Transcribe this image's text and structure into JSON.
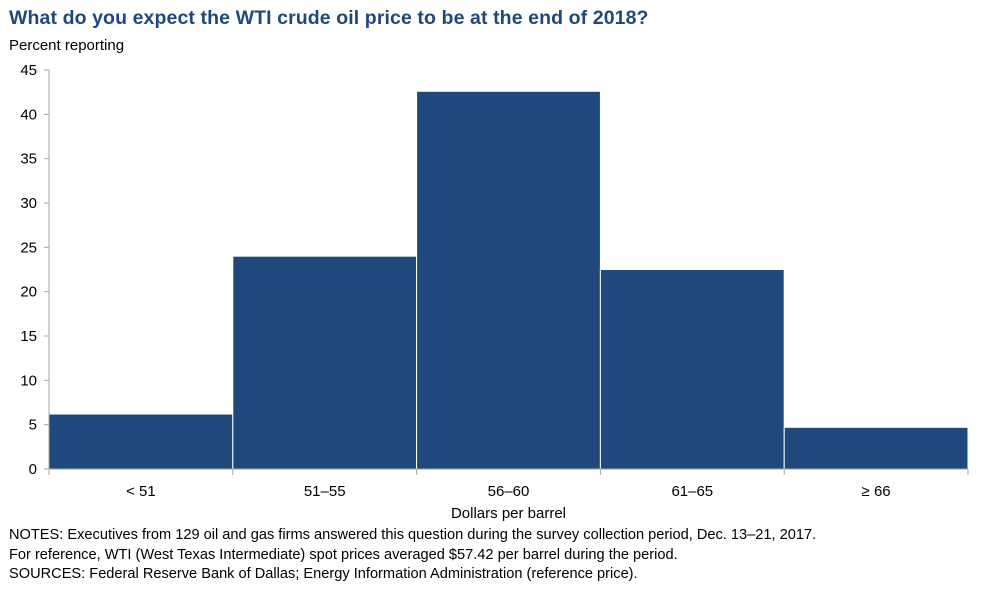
{
  "chart_data": {
    "type": "bar",
    "title": "What do you expect the WTI crude oil price to be at the end of 2018?",
    "ylabel": "Percent reporting",
    "xlabel": "Dollars per barrel",
    "categories": [
      "< 51",
      "51–55",
      "56–60",
      "61–65",
      "≥ 66"
    ],
    "values": [
      6.2,
      24.0,
      42.6,
      22.5,
      4.7
    ],
    "ylim": [
      0,
      45
    ],
    "yticks": [
      0,
      5,
      10,
      15,
      20,
      25,
      30,
      35,
      40,
      45
    ],
    "grid": false,
    "bar_color": "#1f497d"
  },
  "notes": [
    "NOTES: Executives from 129 oil and gas firms answered this question during the survey collection period, Dec. 13–21, 2017.",
    "For reference, WTI (West Texas Intermediate) spot prices averaged $57.42 per barrel during the period.",
    "SOURCES: Federal Reserve Bank of Dallas; Energy Information Administration (reference price)."
  ]
}
